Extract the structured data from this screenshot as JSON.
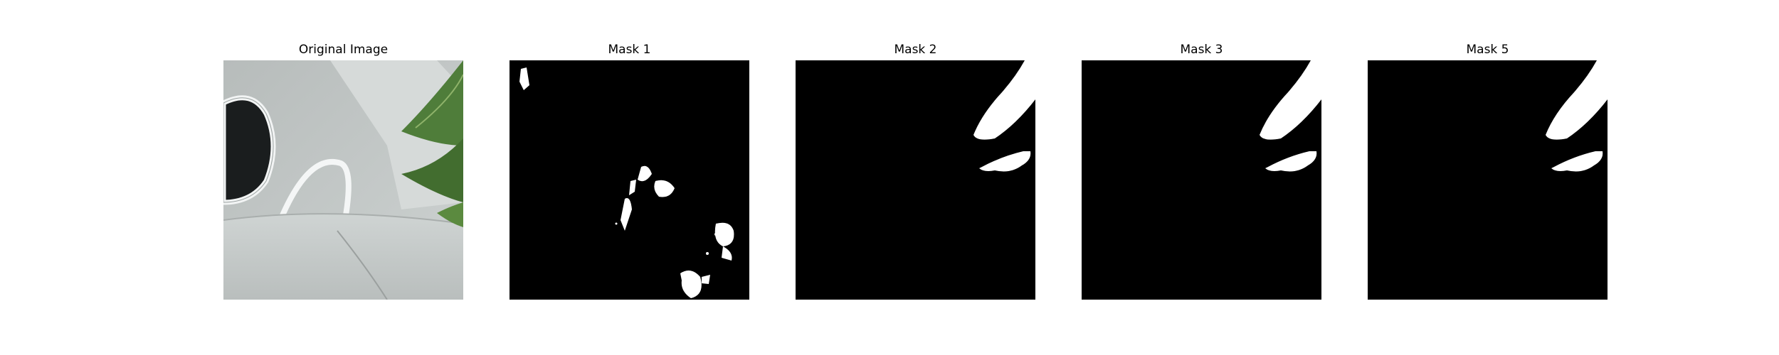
{
  "panels": [
    {
      "title": "Original Image"
    },
    {
      "title": "Mask 1"
    },
    {
      "title": "Mask 2"
    },
    {
      "title": "Mask 3"
    },
    {
      "title": "Mask 5"
    }
  ],
  "colors": {
    "background": "#ffffff",
    "mask_background": "#000000",
    "mask_foreground": "#ffffff",
    "photo_surface": "#c4c9c8",
    "photo_leaf": "#4f7d3a"
  }
}
